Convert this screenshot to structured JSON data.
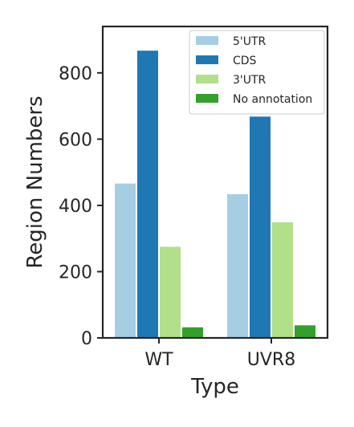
{
  "chart_data": {
    "type": "bar",
    "categories": [
      "WT",
      "UVR8"
    ],
    "series": [
      {
        "name": "5'UTR",
        "color": "#a6cee3",
        "values": [
          466,
          434
        ]
      },
      {
        "name": "CDS",
        "color": "#1f78b4",
        "values": [
          867,
          668
        ]
      },
      {
        "name": "3'UTR",
        "color": "#b2df8a",
        "values": [
          275,
          349
        ]
      },
      {
        "name": "No annotation",
        "color": "#33a02c",
        "values": [
          32,
          38
        ]
      }
    ],
    "title": "",
    "xlabel": "Type",
    "ylabel": "Region Numbers",
    "ylim": [
      0,
      940
    ],
    "yticks": [
      0,
      200,
      400,
      600,
      800
    ],
    "grid": false,
    "legend_position": "top-right"
  }
}
